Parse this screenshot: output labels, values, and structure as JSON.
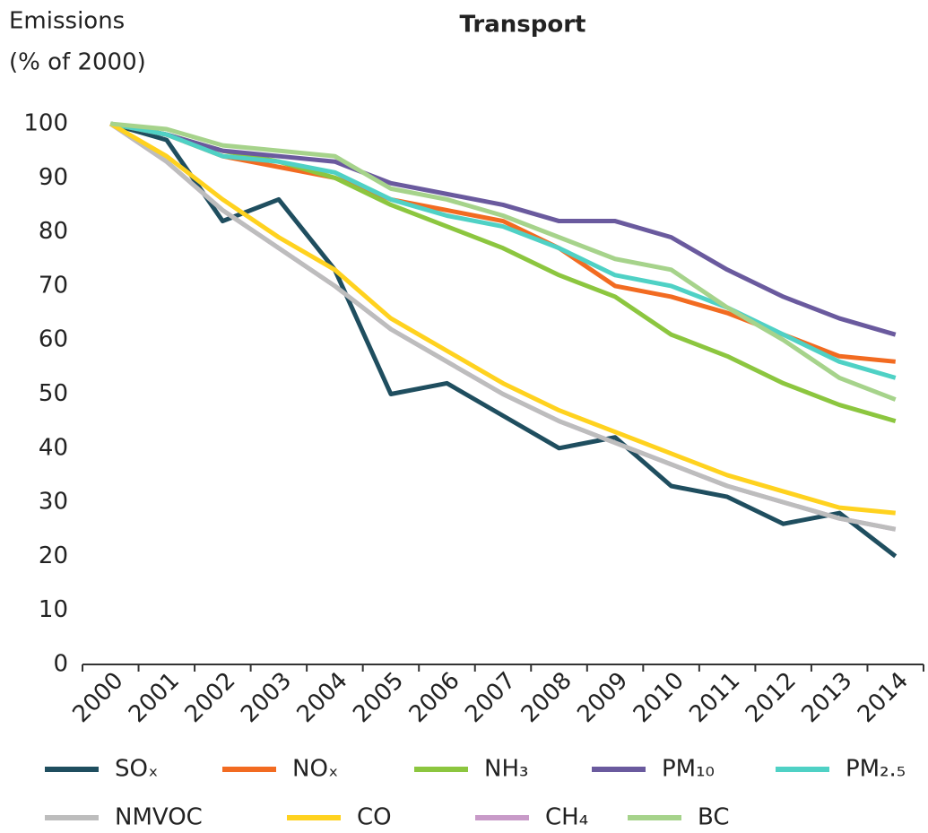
{
  "chart_data": {
    "type": "line",
    "title": "Transport",
    "ylabel": [
      "Emissions",
      "(% of 2000)"
    ],
    "categories": [
      "2000",
      "2001",
      "2002",
      "2003",
      "2004",
      "2005",
      "2006",
      "2007",
      "2008",
      "2009",
      "2010",
      "2011",
      "2012",
      "2013",
      "2014"
    ],
    "ylim": [
      0,
      100
    ],
    "yticks": [
      0,
      10,
      20,
      30,
      40,
      50,
      60,
      70,
      80,
      90,
      100
    ],
    "grid": false,
    "series": [
      {
        "name": "SOₓ",
        "color": "#1f4e5f",
        "values": [
          100,
          97,
          82,
          86,
          73,
          50,
          52,
          46,
          40,
          42,
          33,
          31,
          26,
          28,
          20
        ]
      },
      {
        "name": "NOₓ",
        "color": "#f26b21",
        "values": [
          100,
          98,
          94,
          92,
          90,
          86,
          84,
          82,
          77,
          70,
          68,
          65,
          61,
          57,
          56
        ]
      },
      {
        "name": "NH₃",
        "color": "#8cc63f",
        "values": [
          100,
          98,
          95,
          93,
          90,
          85,
          81,
          77,
          72,
          68,
          61,
          57,
          52,
          48,
          45
        ]
      },
      {
        "name": "PM₁₀",
        "color": "#6a5a9e",
        "values": [
          100,
          98,
          95,
          94,
          93,
          89,
          87,
          85,
          82,
          82,
          79,
          73,
          68,
          64,
          61
        ]
      },
      {
        "name": "PM₂.₅",
        "color": "#4fd1c5",
        "values": [
          100,
          98,
          94,
          93,
          91,
          86,
          83,
          81,
          77,
          72,
          70,
          66,
          61,
          56,
          53
        ]
      },
      {
        "name": "CH₄",
        "color": "#c89ac8",
        "values": [
          100,
          93,
          84,
          77,
          70,
          62,
          56,
          50,
          45,
          41,
          37,
          33,
          30,
          27,
          25
        ]
      },
      {
        "name": "NMVOC",
        "color": "#bdbdbd",
        "values": [
          100,
          93,
          84,
          77,
          70,
          62,
          56,
          50,
          45,
          41,
          37,
          33,
          30,
          27,
          25
        ]
      },
      {
        "name": "CO",
        "color": "#ffd21f",
        "values": [
          100,
          94,
          86,
          79,
          73,
          64,
          58,
          52,
          47,
          43,
          39,
          35,
          32,
          29,
          28
        ]
      },
      {
        "name": "BC",
        "color": "#a6d38b",
        "values": [
          100,
          99,
          96,
          95,
          94,
          88,
          86,
          83,
          79,
          75,
          73,
          66,
          60,
          53,
          49
        ]
      }
    ]
  }
}
